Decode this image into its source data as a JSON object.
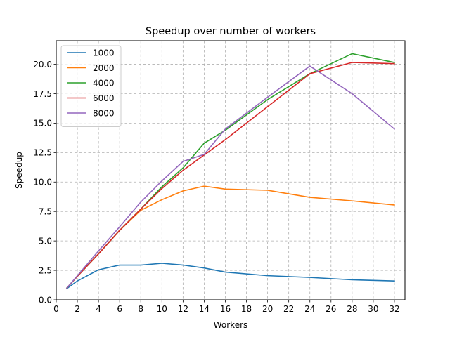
{
  "chart_data": {
    "type": "line",
    "title": "Speedup over number of workers",
    "xlabel": "Workers",
    "ylabel": "Speedup",
    "xlim": [
      0,
      33
    ],
    "ylim": [
      0,
      22
    ],
    "xticks": [
      0,
      2,
      4,
      6,
      8,
      10,
      12,
      14,
      16,
      18,
      20,
      22,
      24,
      26,
      28,
      30,
      32
    ],
    "yticks": [
      0.0,
      2.5,
      5.0,
      7.5,
      10.0,
      12.5,
      15.0,
      17.5,
      20.0
    ],
    "ytick_labels": [
      "0.0",
      "2.5",
      "5.0",
      "7.5",
      "10.0",
      "12.5",
      "15.0",
      "17.5",
      "20.0"
    ],
    "grid": true,
    "legend_position": "top-left",
    "x": [
      1,
      2,
      4,
      6,
      8,
      10,
      12,
      14,
      16,
      20,
      24,
      28,
      32
    ],
    "series": [
      {
        "name": "1000",
        "color": "#1f77b4",
        "values": [
          0.95,
          1.6,
          2.55,
          2.95,
          2.95,
          3.1,
          2.95,
          2.7,
          2.35,
          2.05,
          1.9,
          1.7,
          1.6
        ]
      },
      {
        "name": "2000",
        "color": "#ff7f0e",
        "values": [
          1.0,
          2.0,
          3.9,
          5.9,
          7.6,
          8.5,
          9.25,
          9.65,
          9.4,
          9.3,
          8.7,
          8.4,
          8.05
        ]
      },
      {
        "name": "4000",
        "color": "#2ca02c",
        "values": [
          1.0,
          2.0,
          3.9,
          5.9,
          7.7,
          9.6,
          11.2,
          13.3,
          14.4,
          17.0,
          19.2,
          20.9,
          20.15
        ]
      },
      {
        "name": "6000",
        "color": "#d62728",
        "values": [
          1.0,
          2.0,
          3.9,
          5.9,
          7.7,
          9.45,
          11.0,
          12.3,
          13.6,
          16.4,
          19.2,
          20.15,
          20.05
        ]
      },
      {
        "name": "8000",
        "color": "#9467bd",
        "values": [
          1.0,
          2.05,
          4.15,
          6.2,
          8.3,
          10.1,
          11.75,
          12.35,
          14.5,
          17.2,
          19.85,
          17.5,
          14.5
        ]
      }
    ]
  }
}
